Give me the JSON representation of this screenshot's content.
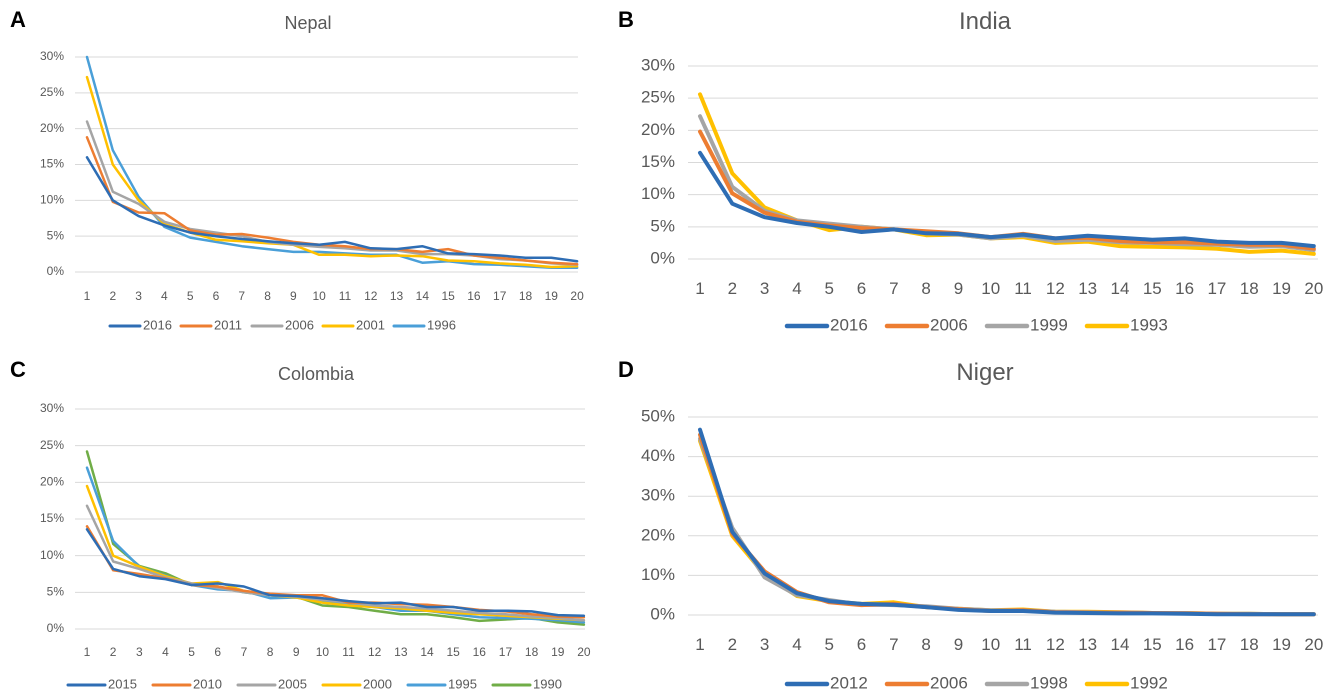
{
  "colors": {
    "dark_blue": "#2e6db4",
    "orange": "#ed7d31",
    "gray": "#a5a5a5",
    "gold": "#ffc000",
    "light_blue": "#4a9fd8",
    "green": "#70ad47",
    "grid": "#d9d9d9",
    "text": "#595959"
  },
  "chart_data": [
    {
      "panel": "A",
      "type": "line",
      "title": "Nepal",
      "x": [
        1,
        2,
        3,
        4,
        5,
        6,
        7,
        8,
        9,
        10,
        11,
        12,
        13,
        14,
        15,
        16,
        17,
        18,
        19,
        20
      ],
      "ylim": [
        0,
        30
      ],
      "yticks": [
        0,
        5,
        10,
        15,
        20,
        25,
        30
      ],
      "ytick_labels": [
        "0%",
        "5%",
        "10%",
        "15%",
        "20%",
        "25%",
        "30%"
      ],
      "grid": true,
      "legend_position": "bottom",
      "series": [
        {
          "name": "2016",
          "color": "#2e6db4",
          "values": [
            16,
            10,
            7.8,
            6.5,
            5.5,
            5.0,
            4.6,
            4.3,
            4.0,
            3.8,
            4.2,
            3.3,
            3.2,
            3.6,
            2.6,
            2.5,
            2.3,
            2.0,
            2.0,
            1.5
          ]
        },
        {
          "name": "2011",
          "color": "#ed7d31",
          "values": [
            18.8,
            9.8,
            8.3,
            8.2,
            5.8,
            5.2,
            5.3,
            4.8,
            4.2,
            3.8,
            3.6,
            3.2,
            3.2,
            2.8,
            3.2,
            2.3,
            2.0,
            1.6,
            1.3,
            1.1
          ]
        },
        {
          "name": "2006",
          "color": "#a5a5a5",
          "values": [
            21,
            11.2,
            9.5,
            7.0,
            6.0,
            5.5,
            5.0,
            4.2,
            3.8,
            3.5,
            3.3,
            3.0,
            3.0,
            2.5,
            2.5,
            2.3,
            1.8,
            1.6,
            1.2,
            1.0
          ]
        },
        {
          "name": "2001",
          "color": "#ffc000",
          "values": [
            27.2,
            15,
            10,
            6.7,
            5.5,
            4.5,
            4.3,
            4.0,
            3.8,
            2.4,
            2.4,
            2.2,
            2.3,
            2.2,
            1.6,
            1.5,
            1.2,
            1.0,
            0.7,
            0.8
          ]
        },
        {
          "name": "1996",
          "color": "#4a9fd8",
          "values": [
            30,
            17,
            10.5,
            6.3,
            4.8,
            4.2,
            3.6,
            3.2,
            2.8,
            2.8,
            2.6,
            2.4,
            2.4,
            1.3,
            1.5,
            1.1,
            1.0,
            0.8,
            0.6,
            0.6
          ]
        }
      ]
    },
    {
      "panel": "B",
      "type": "line",
      "title": "India",
      "x": [
        1,
        2,
        3,
        4,
        5,
        6,
        7,
        8,
        9,
        10,
        11,
        12,
        13,
        14,
        15,
        16,
        17,
        18,
        19,
        20
      ],
      "ylim": [
        0,
        30
      ],
      "yticks": [
        0,
        5,
        10,
        15,
        20,
        25,
        30
      ],
      "ytick_labels": [
        "0%",
        "5%",
        "10%",
        "15%",
        "20%",
        "25%",
        "30%"
      ],
      "grid": true,
      "legend_position": "bottom",
      "series": [
        {
          "name": "2016",
          "color": "#2e6db4",
          "values": [
            16.5,
            8.6,
            6.5,
            5.6,
            5.0,
            4.2,
            4.6,
            4.0,
            3.9,
            3.4,
            3.8,
            3.2,
            3.6,
            3.3,
            3.0,
            3.2,
            2.7,
            2.5,
            2.5,
            2.0
          ]
        },
        {
          "name": "2006",
          "color": "#ed7d31",
          "values": [
            19.8,
            10.2,
            7.2,
            5.8,
            5.2,
            4.8,
            4.6,
            4.3,
            4.0,
            3.4,
            3.9,
            3.2,
            3.3,
            2.8,
            2.6,
            2.6,
            2.4,
            2.2,
            2.2,
            1.6
          ]
        },
        {
          "name": "1999",
          "color": "#a5a5a5",
          "values": [
            22.2,
            11.2,
            7.5,
            6.0,
            5.5,
            5.0,
            4.6,
            4.0,
            3.8,
            3.2,
            3.6,
            2.8,
            3.0,
            2.6,
            2.5,
            2.3,
            2.2,
            1.9,
            2.0,
            1.4
          ]
        },
        {
          "name": "1993",
          "color": "#ffc000",
          "values": [
            25.6,
            13.3,
            8.0,
            6.0,
            4.5,
            5.0,
            4.6,
            3.7,
            3.8,
            3.2,
            3.4,
            2.5,
            2.7,
            2.0,
            1.9,
            1.8,
            1.6,
            1.1,
            1.3,
            0.8
          ]
        }
      ]
    },
    {
      "panel": "C",
      "type": "line",
      "title": "Colombia",
      "x": [
        1,
        2,
        3,
        4,
        5,
        6,
        7,
        8,
        9,
        10,
        11,
        12,
        13,
        14,
        15,
        16,
        17,
        18,
        19,
        20
      ],
      "ylim": [
        0,
        30
      ],
      "yticks": [
        0,
        5,
        10,
        15,
        20,
        25,
        30
      ],
      "ytick_labels": [
        "0%",
        "5%",
        "10%",
        "15%",
        "20%",
        "25%",
        "30%"
      ],
      "grid": true,
      "legend_position": "bottom",
      "series": [
        {
          "name": "2015",
          "color": "#2e6db4",
          "values": [
            13.6,
            8.2,
            7.2,
            6.8,
            6.0,
            6.2,
            5.8,
            4.6,
            4.5,
            4.2,
            3.8,
            3.5,
            3.6,
            3.0,
            3.0,
            2.5,
            2.5,
            2.4,
            1.9,
            1.8
          ]
        },
        {
          "name": "2010",
          "color": "#ed7d31",
          "values": [
            14.0,
            8.0,
            7.5,
            6.9,
            6.0,
            5.8,
            5.2,
            4.8,
            4.6,
            4.6,
            3.6,
            3.6,
            3.4,
            3.3,
            3.0,
            2.6,
            2.4,
            2.0,
            1.7,
            1.6
          ]
        },
        {
          "name": "2005",
          "color": "#a5a5a5",
          "values": [
            16.8,
            9.2,
            8.2,
            7.0,
            6.2,
            5.6,
            5.0,
            4.6,
            4.4,
            4.0,
            3.6,
            3.2,
            3.0,
            2.8,
            2.5,
            2.2,
            2.0,
            1.7,
            1.5,
            1.2
          ]
        },
        {
          "name": "2000",
          "color": "#ffc000",
          "values": [
            19.5,
            10.0,
            8.5,
            7.2,
            6.2,
            6.4,
            5.2,
            4.6,
            4.3,
            3.6,
            3.2,
            3.0,
            2.8,
            2.5,
            2.2,
            2.0,
            1.8,
            1.6,
            1.4,
            1.2
          ]
        },
        {
          "name": "1995",
          "color": "#4a9fd8",
          "values": [
            22.0,
            12.0,
            8.5,
            7.3,
            6.0,
            5.4,
            5.2,
            4.2,
            4.3,
            3.8,
            3.4,
            3.0,
            2.5,
            2.5,
            2.0,
            1.6,
            1.5,
            1.4,
            1.2,
            0.9
          ]
        },
        {
          "name": "1990",
          "color": "#70ad47",
          "values": [
            24.2,
            11.6,
            8.6,
            7.6,
            6.0,
            5.8,
            5.0,
            4.6,
            4.4,
            3.2,
            3.0,
            2.5,
            2.0,
            2.0,
            1.6,
            1.1,
            1.3,
            1.5,
            0.9,
            0.6
          ]
        }
      ]
    },
    {
      "panel": "D",
      "type": "line",
      "title": "Niger",
      "x": [
        1,
        2,
        3,
        4,
        5,
        6,
        7,
        8,
        9,
        10,
        11,
        12,
        13,
        14,
        15,
        16,
        17,
        18,
        19,
        20
      ],
      "ylim": [
        0,
        50
      ],
      "yticks": [
        0,
        10,
        20,
        30,
        40,
        50
      ],
      "ytick_labels": [
        "0%",
        "10%",
        "20%",
        "30%",
        "40%",
        "50%"
      ],
      "grid": true,
      "legend_position": "bottom",
      "series": [
        {
          "name": "2012",
          "color": "#2e6db4",
          "values": [
            46.8,
            21.0,
            10.5,
            5.5,
            3.5,
            2.8,
            2.6,
            2.0,
            1.3,
            1.0,
            1.0,
            0.6,
            0.5,
            0.4,
            0.4,
            0.3,
            0.2,
            0.2,
            0.2,
            0.2
          ]
        },
        {
          "name": "2006",
          "color": "#ed7d31",
          "values": [
            45.5,
            20.5,
            11.0,
            5.8,
            3.2,
            2.5,
            2.8,
            2.0,
            1.5,
            1.0,
            1.2,
            0.7,
            0.6,
            0.6,
            0.5,
            0.4,
            0.3,
            0.2,
            0.2,
            0.2
          ]
        },
        {
          "name": "1998",
          "color": "#a5a5a5",
          "values": [
            44.5,
            22.0,
            9.5,
            5.0,
            3.8,
            2.6,
            2.5,
            2.2,
            1.6,
            1.2,
            1.2,
            0.8,
            0.7,
            0.6,
            0.5,
            0.5,
            0.3,
            0.3,
            0.2,
            0.2
          ]
        },
        {
          "name": "1992",
          "color": "#ffc000",
          "values": [
            44.0,
            20.0,
            10.2,
            4.8,
            3.5,
            2.8,
            3.2,
            2.0,
            1.6,
            1.2,
            1.4,
            0.8,
            0.8,
            0.7,
            0.5,
            0.5,
            0.3,
            0.3,
            0.2,
            0.2
          ]
        }
      ]
    }
  ]
}
